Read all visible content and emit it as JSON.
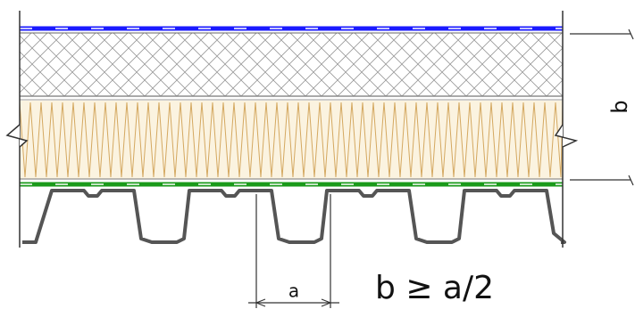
{
  "labels": {
    "dimension_b": "b",
    "dimension_a": "a",
    "rule": "b ≥ a/2"
  }
}
